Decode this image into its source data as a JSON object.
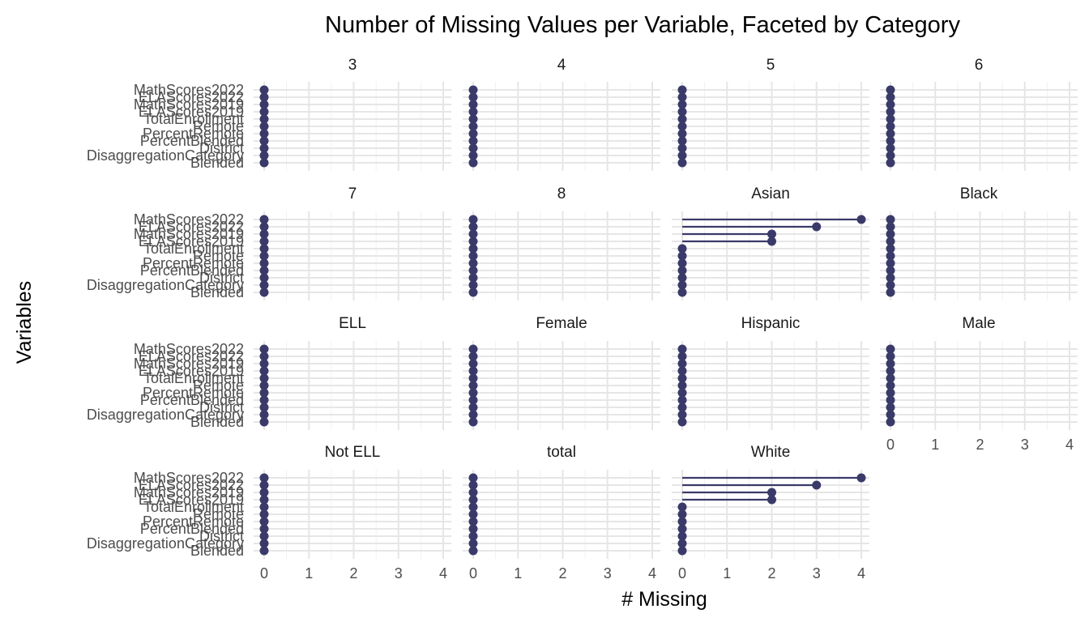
{
  "chart_data": {
    "type": "lollipop",
    "title": "Number of Missing Values per Variable, Faceted by Category",
    "xlabel": "# Missing",
    "ylabel": "Variables",
    "xlim": [
      0,
      4
    ],
    "x_ticks": [
      "0",
      "1",
      "2",
      "3",
      "4"
    ],
    "grid": true,
    "colors": {
      "lollipop": "#3a3a6a",
      "grid": "#e6e6e6"
    },
    "variables": [
      "MathScores2022",
      "ELAScores2022",
      "MathScores2019",
      "ELAScores2019",
      "TotalEnrollment",
      "Remote",
      "PercentRemote",
      "PercentBlended",
      "District",
      "DisaggregationCategory",
      "Blended"
    ],
    "facets": [
      {
        "name": "3",
        "values": [
          0,
          0,
          0,
          0,
          0,
          0,
          0,
          0,
          0,
          0,
          0
        ]
      },
      {
        "name": "4",
        "values": [
          0,
          0,
          0,
          0,
          0,
          0,
          0,
          0,
          0,
          0,
          0
        ]
      },
      {
        "name": "5",
        "values": [
          0,
          0,
          0,
          0,
          0,
          0,
          0,
          0,
          0,
          0,
          0
        ]
      },
      {
        "name": "6",
        "values": [
          0,
          0,
          0,
          0,
          0,
          0,
          0,
          0,
          0,
          0,
          0
        ]
      },
      {
        "name": "7",
        "values": [
          0,
          0,
          0,
          0,
          0,
          0,
          0,
          0,
          0,
          0,
          0
        ]
      },
      {
        "name": "8",
        "values": [
          0,
          0,
          0,
          0,
          0,
          0,
          0,
          0,
          0,
          0,
          0
        ]
      },
      {
        "name": "Asian",
        "values": [
          4,
          3,
          2,
          2,
          0,
          0,
          0,
          0,
          0,
          0,
          0
        ]
      },
      {
        "name": "Black",
        "values": [
          0,
          0,
          0,
          0,
          0,
          0,
          0,
          0,
          0,
          0,
          0
        ]
      },
      {
        "name": "ELL",
        "values": [
          0,
          0,
          0,
          0,
          0,
          0,
          0,
          0,
          0,
          0,
          0
        ]
      },
      {
        "name": "Female",
        "values": [
          0,
          0,
          0,
          0,
          0,
          0,
          0,
          0,
          0,
          0,
          0
        ]
      },
      {
        "name": "Hispanic",
        "values": [
          0,
          0,
          0,
          0,
          0,
          0,
          0,
          0,
          0,
          0,
          0
        ]
      },
      {
        "name": "Male",
        "values": [
          0,
          0,
          0,
          0,
          0,
          0,
          0,
          0,
          0,
          0,
          0
        ]
      },
      {
        "name": "Not ELL",
        "values": [
          0,
          0,
          0,
          0,
          0,
          0,
          0,
          0,
          0,
          0,
          0
        ]
      },
      {
        "name": "total",
        "values": [
          0,
          0,
          0,
          0,
          0,
          0,
          0,
          0,
          0,
          0,
          0
        ]
      },
      {
        "name": "White",
        "values": [
          4,
          3,
          2,
          2,
          0,
          0,
          0,
          0,
          0,
          0,
          0
        ]
      }
    ]
  }
}
